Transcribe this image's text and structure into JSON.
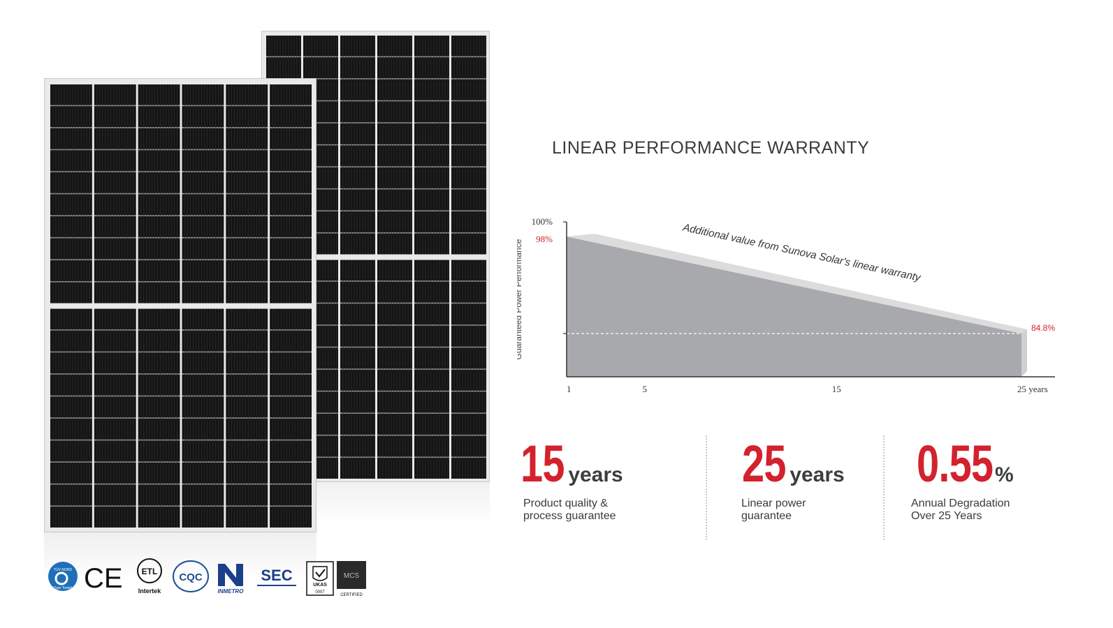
{
  "title": "LINEAR PERFORMANCE WARRANTY",
  "chart_data": {
    "type": "area",
    "title": "LINEAR PERFORMANCE WARRANTY",
    "ylabel": "Guaranteed Power Performance",
    "x_ticks": [
      "1",
      "5",
      "15",
      "25 years"
    ],
    "y_ticks": [
      "100%"
    ],
    "series": [
      {
        "x": [
          1,
          25
        ],
        "y": [
          98,
          84.8
        ]
      }
    ],
    "point_labels": [
      "98%",
      "84.8%"
    ],
    "annotation": "Additional value from Sunova Solar's linear warranty",
    "colors": {
      "area": "#a8a9ad",
      "band": "#dcdcdc",
      "label": "#d3222d"
    }
  },
  "stats": [
    {
      "value": "15",
      "unit": "years",
      "desc_line1": "Product quality &",
      "desc_line2": "process guarantee"
    },
    {
      "value": "25",
      "unit": "years",
      "desc_line1": "Linear power",
      "desc_line2": "guarantee"
    },
    {
      "value": "0.55",
      "unit": "%",
      "desc_line1": "Annual Degradation",
      "desc_line2": "Over 25 Years"
    }
  ],
  "certifications": {
    "tuv_label": "TÜV NORD",
    "tuv_sub": "Type Tested",
    "ce_label": "CE",
    "etl_label": "ETL",
    "etl_sub": "Intertek",
    "cqc_label": "CQC",
    "inmetro_label": "INMETRO",
    "sec_label": "SEC",
    "ukas_label": "UKAS",
    "ukas_sub": "0007",
    "mcs_label": "MCS",
    "mcs_sub": "CERTIFIED"
  },
  "accent_color": "#d3222d"
}
